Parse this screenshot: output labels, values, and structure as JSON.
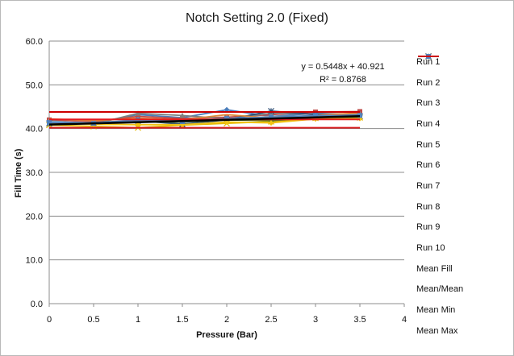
{
  "chart_data": {
    "type": "line",
    "title": "Notch Setting 2.0 (Fixed)",
    "xlabel": "Pressure (Bar)",
    "ylabel": "Fill Time (s)",
    "xlim": [
      0,
      4
    ],
    "ylim": [
      0,
      60
    ],
    "x_ticks": [
      "0",
      "0.5",
      "1",
      "1.5",
      "2",
      "2.5",
      "3",
      "3.5",
      "4"
    ],
    "y_ticks": [
      "0.0",
      "10.0",
      "20.0",
      "30.0",
      "40.0",
      "50.0",
      "60.0"
    ],
    "grid": "horizontal",
    "legend_position": "right",
    "x": [
      0,
      0.5,
      1,
      1.5,
      2,
      2.5,
      3,
      3.5
    ],
    "series": [
      {
        "name": "Run 1",
        "color": "#4a7ebb",
        "marker": "diamond",
        "values": [
          41.5,
          41.2,
          43.2,
          42.5,
          44.3,
          42.8,
          43.5,
          43.2
        ]
      },
      {
        "name": "Run 2",
        "color": "#be4b48",
        "marker": "square",
        "values": [
          42.0,
          41.6,
          42.8,
          42.3,
          42.6,
          43.2,
          43.8,
          43.9
        ]
      },
      {
        "name": "Run 3",
        "color": "#7f7f7f",
        "marker": "triangle",
        "values": [
          41.8,
          41.0,
          43.5,
          43.0,
          42.2,
          43.5,
          43.3,
          43.4
        ]
      },
      {
        "name": "Run 4",
        "color": "#e5b800",
        "marker": "x",
        "values": [
          40.8,
          40.5,
          40.2,
          40.8,
          41.2,
          41.6,
          42.4,
          42.5
        ]
      },
      {
        "name": "Run 5",
        "color": "#2c4d75",
        "marker": "star",
        "values": [
          41.2,
          41.4,
          41.8,
          41.0,
          42.0,
          44.0,
          43.2,
          42.8
        ]
      },
      {
        "name": "Run 6",
        "color": "#4f7a28",
        "marker": "circle",
        "values": [
          41.3,
          41.2,
          41.5,
          41.5,
          42.0,
          41.8,
          42.5,
          42.6
        ]
      },
      {
        "name": "Run 7",
        "color": "#7fb2de",
        "marker": "plus",
        "values": [
          41.6,
          41.3,
          42.0,
          41.6,
          42.3,
          42.6,
          42.9,
          43.0
        ]
      },
      {
        "name": "Run 8",
        "color": "#e0883a",
        "marker": "none",
        "values": [
          42.2,
          41.8,
          42.4,
          42.0,
          43.2,
          42.4,
          43.0,
          43.6
        ]
      },
      {
        "name": "Run 9",
        "color": "#a5a5a5",
        "marker": "none",
        "values": [
          41.0,
          41.1,
          41.6,
          41.9,
          42.1,
          42.8,
          42.7,
          42.9
        ]
      },
      {
        "name": "Run 10",
        "color": "#f2c314",
        "marker": "diamond",
        "values": [
          41.4,
          41.0,
          40.9,
          40.9,
          41.5,
          41.3,
          42.2,
          42.3
        ]
      },
      {
        "name": "Mean Fill",
        "color": "#4f81bd",
        "marker": "square",
        "values": [
          41.4,
          41.2,
          42.0,
          41.6,
          42.3,
          42.6,
          43.0,
          43.0
        ]
      },
      {
        "name": "Mean/Mean",
        "color": "#e31a1c",
        "marker": "none",
        "values": [
          42.1,
          42.1,
          42.1,
          42.1,
          42.1,
          42.1,
          42.1,
          42.1
        ]
      },
      {
        "name": "Mean Min",
        "color": "#d7191c",
        "marker": "none",
        "values": [
          40.2,
          40.2,
          40.2,
          40.2,
          40.2,
          40.2,
          40.2,
          40.2
        ]
      },
      {
        "name": "Mean Max",
        "color": "#cc0000",
        "marker": "none",
        "values": [
          43.8,
          43.8,
          43.8,
          43.8,
          43.8,
          43.8,
          43.8,
          43.8
        ]
      }
    ],
    "trendline": {
      "slope": 0.5448,
      "intercept": 40.921,
      "color": "#000000"
    },
    "annotations": [
      "y = 0.5448x + 40.921",
      "R² = 0.8768"
    ]
  }
}
